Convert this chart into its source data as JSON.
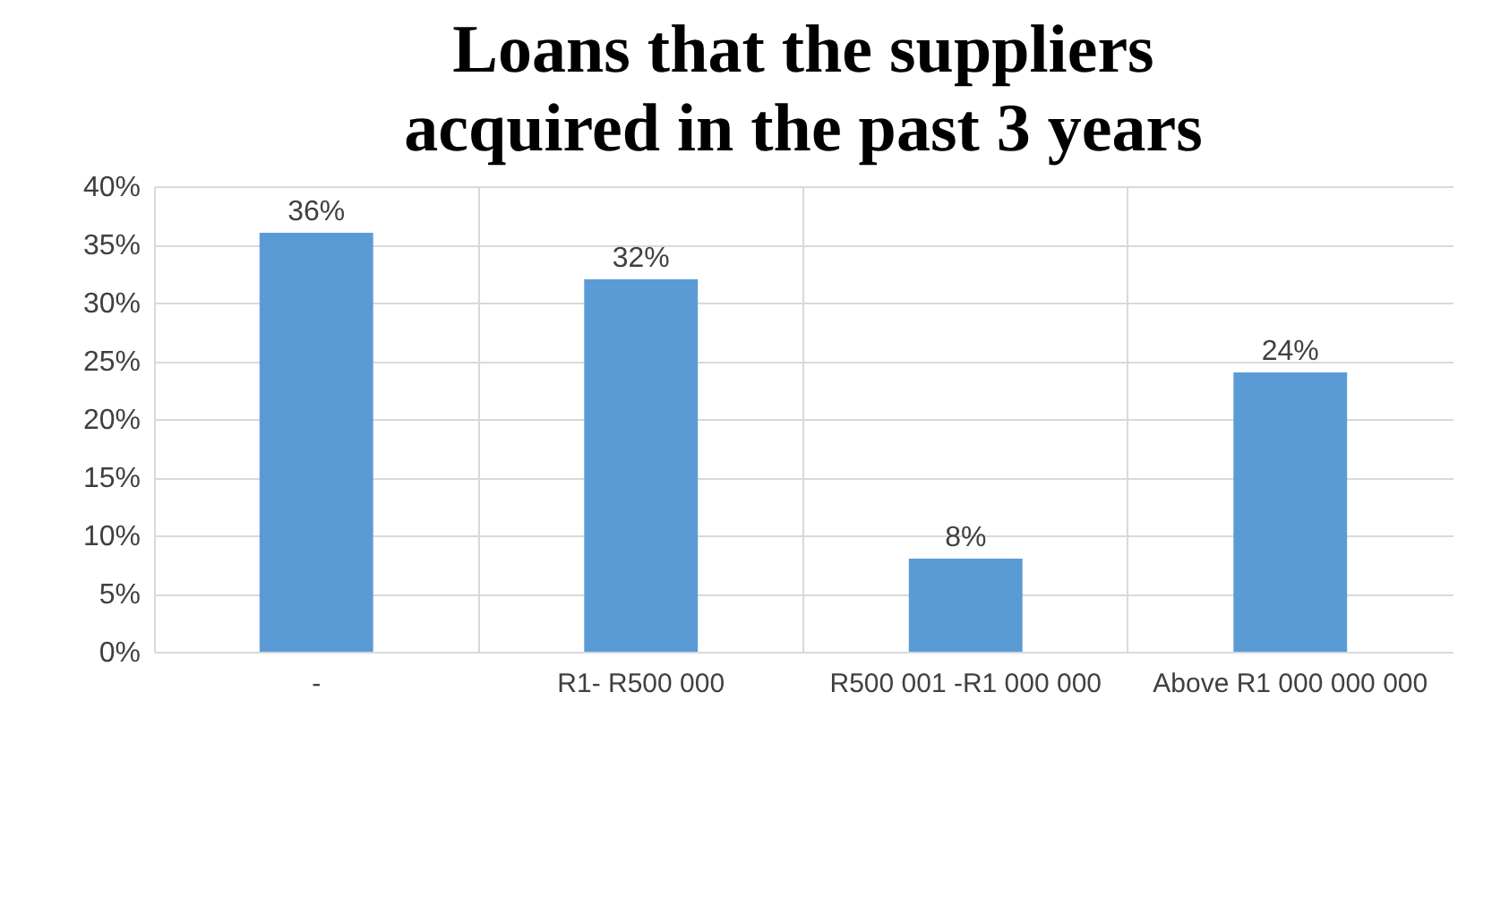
{
  "chart_data": {
    "type": "bar",
    "title": "Loans that the suppliers acquired in the past 3 years",
    "categories": [
      "-",
      "R1- R500 000",
      "R500 001 -R1 000 000",
      "Above R1 000 000 000"
    ],
    "values": [
      36,
      32,
      8,
      24
    ],
    "value_labels": [
      "36%",
      "32%",
      "8%",
      "24%"
    ],
    "color": "#5b9bd5",
    "ylim": [
      0,
      40
    ],
    "yticks": [
      {
        "value": 0,
        "label": "0%"
      },
      {
        "value": 5,
        "label": "5%"
      },
      {
        "value": 10,
        "label": "10%"
      },
      {
        "value": 15,
        "label": "15%"
      },
      {
        "value": 20,
        "label": "20%"
      },
      {
        "value": 25,
        "label": "25%"
      },
      {
        "value": 30,
        "label": "30%"
      },
      {
        "value": 35,
        "label": "35%"
      },
      {
        "value": 40,
        "label": "40%"
      }
    ],
    "grid": true
  }
}
